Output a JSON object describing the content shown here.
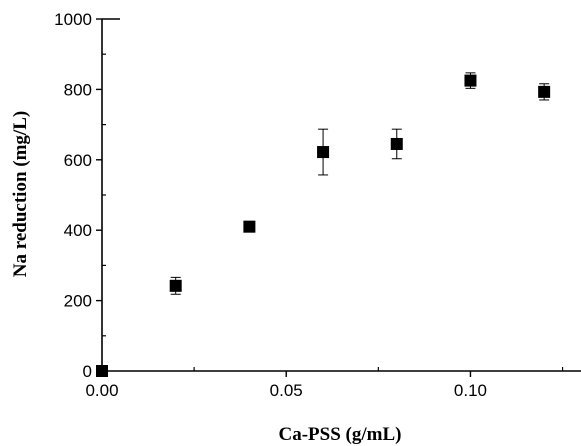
{
  "chart_data": {
    "type": "scatter",
    "xlabel": "Ca-PSS (g/mL)",
    "ylabel": "Na reduction (mg/L)",
    "xlim": [
      0,
      0.13
    ],
    "ylim": [
      0,
      1000
    ],
    "x_ticks": [
      {
        "value": 0.0,
        "label": "0.00"
      },
      {
        "value": 0.05,
        "label": "0.05"
      },
      {
        "value": 0.1,
        "label": "0.10"
      }
    ],
    "y_ticks": [
      {
        "value": 0,
        "label": "0"
      },
      {
        "value": 200,
        "label": "200"
      },
      {
        "value": 400,
        "label": "400"
      },
      {
        "value": 600,
        "label": "600"
      },
      {
        "value": 800,
        "label": "800"
      },
      {
        "value": 1000,
        "label": "1000"
      }
    ],
    "grid": false,
    "marker": "square",
    "marker_color": "#000000",
    "series": [
      {
        "points": [
          {
            "x": 0.0,
            "y": 0,
            "err": 0
          },
          {
            "x": 0.02,
            "y": 242,
            "err": 24
          },
          {
            "x": 0.04,
            "y": 410,
            "err": 15
          },
          {
            "x": 0.06,
            "y": 622,
            "err": 65
          },
          {
            "x": 0.08,
            "y": 645,
            "err": 42
          },
          {
            "x": 0.1,
            "y": 825,
            "err": 22
          },
          {
            "x": 0.12,
            "y": 793,
            "err": 23
          }
        ]
      }
    ]
  }
}
